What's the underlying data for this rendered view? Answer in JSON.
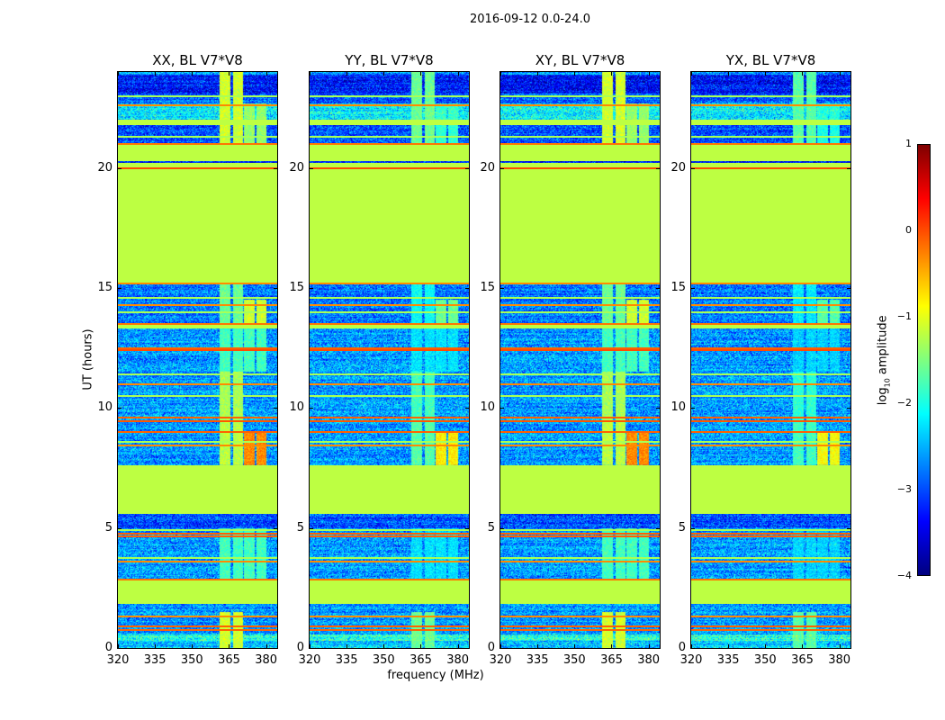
{
  "chart_data": {
    "type": "heatmap",
    "title": "2016-09-12 0.0-24.0",
    "xlabel": "frequency (MHz)",
    "ylabel": "UT (hours)",
    "xlim": [
      320,
      384.5
    ],
    "ylim": [
      0,
      24
    ],
    "xticks": [
      "320",
      "335",
      "350",
      "365",
      "380"
    ],
    "yticks": [
      "0",
      "5",
      "10",
      "15",
      "20"
    ],
    "colormap": "jet",
    "colorbar": {
      "label_main": "log",
      "label_sub": "10",
      "label_rest": " amplitude",
      "range": [
        -4,
        1
      ],
      "ticks": [
        "1",
        "0",
        "−1",
        "−2",
        "−3",
        "−4"
      ]
    },
    "flagged_value": -1.2,
    "panels": [
      {
        "title": "XX, BL V7*V8",
        "rfi_scale": 1.0
      },
      {
        "title": "YY, BL V7*V8",
        "rfi_scale": 0.75
      },
      {
        "title": "XY, BL V7*V8",
        "rfi_scale": 1.0
      },
      {
        "title": "YX, BL V7*V8",
        "rfi_scale": 0.7
      }
    ],
    "time_segments": [
      {
        "start": 0.0,
        "end": 0.3,
        "type": "data",
        "mean": -2.4
      },
      {
        "start": 0.3,
        "end": 0.55,
        "type": "data",
        "mean": -1.9
      },
      {
        "start": 0.55,
        "end": 1.85,
        "type": "data",
        "mean": -2.6
      },
      {
        "start": 1.85,
        "end": 2.85,
        "type": "flagged"
      },
      {
        "start": 2.85,
        "end": 5.0,
        "type": "data",
        "mean": -2.6
      },
      {
        "start": 5.0,
        "end": 5.6,
        "type": "data",
        "mean": -3.0
      },
      {
        "start": 5.6,
        "end": 7.6,
        "type": "flagged"
      },
      {
        "start": 7.6,
        "end": 13.3,
        "type": "data",
        "mean": -2.6
      },
      {
        "start": 13.3,
        "end": 13.5,
        "type": "flagged"
      },
      {
        "start": 13.5,
        "end": 15.2,
        "type": "data",
        "mean": -2.8
      },
      {
        "start": 15.2,
        "end": 20.2,
        "type": "flagged"
      },
      {
        "start": 20.2,
        "end": 20.3,
        "type": "data",
        "mean": -3.3
      },
      {
        "start": 20.3,
        "end": 21.0,
        "type": "flagged"
      },
      {
        "start": 21.0,
        "end": 21.8,
        "type": "data",
        "mean": -3.0
      },
      {
        "start": 21.8,
        "end": 22.0,
        "type": "flagged"
      },
      {
        "start": 22.0,
        "end": 22.7,
        "type": "data",
        "mean": -2.2
      },
      {
        "start": 22.7,
        "end": 23.1,
        "type": "data",
        "mean": -2.9
      },
      {
        "start": 23.1,
        "end": 23.9,
        "type": "data",
        "mean": -3.3
      },
      {
        "start": 23.9,
        "end": 24.0,
        "type": "data",
        "mean": -2.6
      }
    ],
    "lines": [
      {
        "t": 0.75,
        "value": -0.1
      },
      {
        "t": 0.9,
        "value": -0.1
      },
      {
        "t": 1.3,
        "value": -0.3
      },
      {
        "t": 2.85,
        "value": -0.2
      },
      {
        "t": 3.6,
        "value": -0.3
      },
      {
        "t": 3.75,
        "value": -1.3
      },
      {
        "t": 4.65,
        "value": -0.1
      },
      {
        "t": 4.75,
        "value": -0.1
      },
      {
        "t": 4.9,
        "value": -1.3
      },
      {
        "t": 8.45,
        "value": -0.3
      },
      {
        "t": 8.6,
        "value": -1.3
      },
      {
        "t": 9.0,
        "value": -0.1
      },
      {
        "t": 9.45,
        "value": -0.05
      },
      {
        "t": 9.6,
        "value": -0.1
      },
      {
        "t": 10.5,
        "value": -1.3
      },
      {
        "t": 11.0,
        "value": -0.3
      },
      {
        "t": 11.4,
        "value": -1.3
      },
      {
        "t": 12.4,
        "value": 0.0
      },
      {
        "t": 12.5,
        "value": -0.1
      },
      {
        "t": 13.5,
        "value": -0.2
      },
      {
        "t": 14.0,
        "value": -1.3
      },
      {
        "t": 14.3,
        "value": -0.3
      },
      {
        "t": 14.6,
        "value": -1.3
      },
      {
        "t": 15.2,
        "value": -0.3
      },
      {
        "t": 20.0,
        "value": 0.0
      },
      {
        "t": 21.0,
        "value": -0.2
      },
      {
        "t": 21.3,
        "value": -1.3
      },
      {
        "t": 22.6,
        "value": -0.3
      },
      {
        "t": 23.0,
        "value": -1.3
      }
    ],
    "rfi_channels_mhz": [
      [
        361,
        365.5
      ],
      [
        366.5,
        370.5
      ],
      [
        371,
        375.5
      ],
      [
        376,
        380
      ]
    ],
    "rfi_windows": [
      {
        "start": 0.0,
        "end": 1.5,
        "channels": [
          0,
          1
        ],
        "value": -1.1
      },
      {
        "start": 2.85,
        "end": 5.0,
        "channels": [
          0,
          1,
          2,
          3
        ],
        "value": -1.8
      },
      {
        "start": 7.6,
        "end": 9.5,
        "channels": [
          0,
          1
        ],
        "value": -1.2
      },
      {
        "start": 7.6,
        "end": 9.0,
        "channels": [
          2,
          3
        ],
        "value": -0.3
      },
      {
        "start": 9.5,
        "end": 11.5,
        "channels": [
          0,
          1
        ],
        "value": -1.3
      },
      {
        "start": 11.5,
        "end": 13.3,
        "channels": [
          0,
          1,
          2,
          3
        ],
        "value": -1.8
      },
      {
        "start": 13.5,
        "end": 15.2,
        "channels": [
          0,
          1
        ],
        "value": -1.6
      },
      {
        "start": 13.5,
        "end": 14.5,
        "channels": [
          2,
          3
        ],
        "value": -1.1
      },
      {
        "start": 21.0,
        "end": 24.0,
        "channels": [
          0,
          1
        ],
        "value": -1.1
      },
      {
        "start": 21.0,
        "end": 22.7,
        "channels": [
          2,
          3
        ],
        "value": -1.4
      }
    ]
  }
}
